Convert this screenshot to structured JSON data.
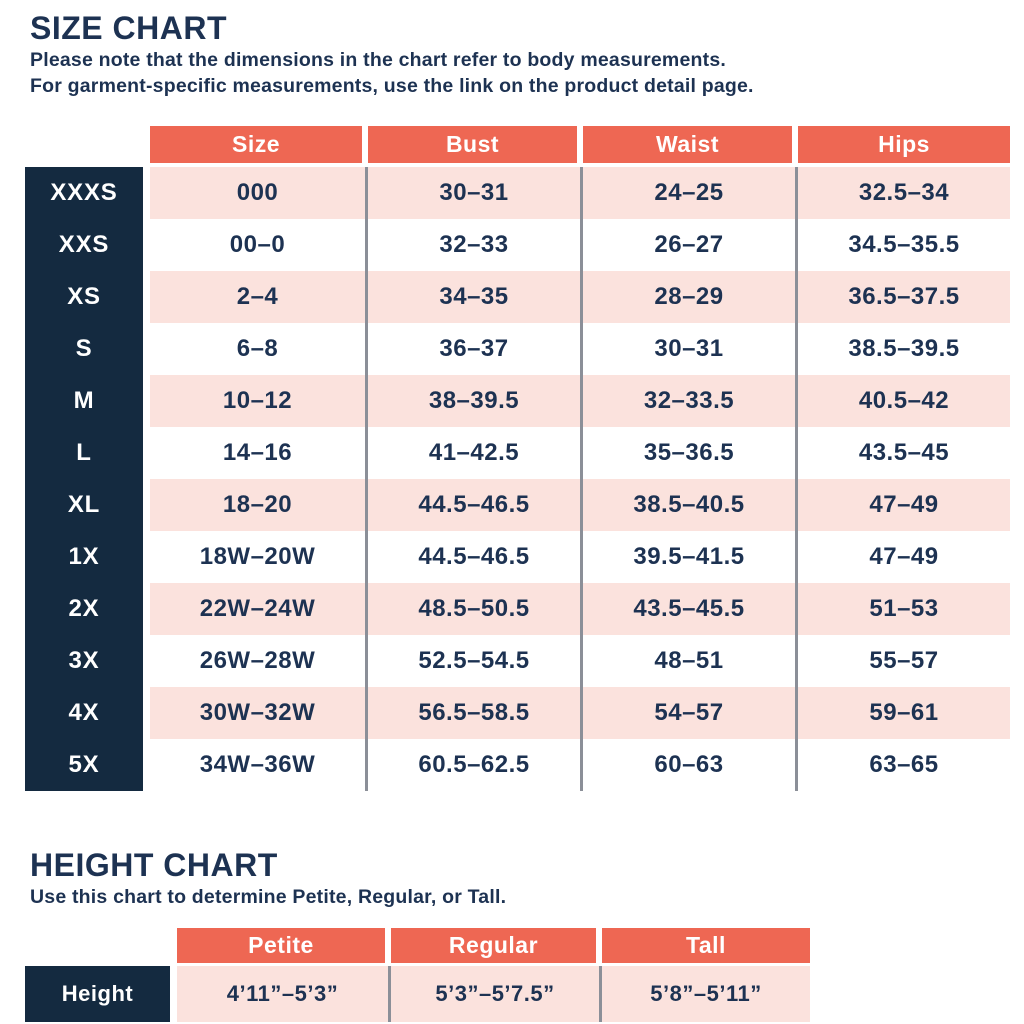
{
  "colors": {
    "accent_orange": "#EE6753",
    "row_pink": "#FBE2DD",
    "navy_block": "#142A40",
    "text_navy": "#1D3252",
    "divider_gray": "#8B8F98"
  },
  "size_chart": {
    "title": "SIZE CHART",
    "subtitle_line1": "Please note that the dimensions in the chart refer to body measurements.",
    "subtitle_line2": "For garment-specific measurements, use the link on the product detail page.",
    "columns": [
      "Size",
      "Bust",
      "Waist",
      "Hips"
    ],
    "rows": [
      {
        "label": "XXXS",
        "values": [
          "000",
          "30–31",
          "24–25",
          "32.5–34"
        ]
      },
      {
        "label": "XXS",
        "values": [
          "00–0",
          "32–33",
          "26–27",
          "34.5–35.5"
        ]
      },
      {
        "label": "XS",
        "values": [
          "2–4",
          "34–35",
          "28–29",
          "36.5–37.5"
        ]
      },
      {
        "label": "S",
        "values": [
          "6–8",
          "36–37",
          "30–31",
          "38.5–39.5"
        ]
      },
      {
        "label": "M",
        "values": [
          "10–12",
          "38–39.5",
          "32–33.5",
          "40.5–42"
        ]
      },
      {
        "label": "L",
        "values": [
          "14–16",
          "41–42.5",
          "35–36.5",
          "43.5–45"
        ]
      },
      {
        "label": "XL",
        "values": [
          "18–20",
          "44.5–46.5",
          "38.5–40.5",
          "47–49"
        ]
      },
      {
        "label": "1X",
        "values": [
          "18W–20W",
          "44.5–46.5",
          "39.5–41.5",
          "47–49"
        ]
      },
      {
        "label": "2X",
        "values": [
          "22W–24W",
          "48.5–50.5",
          "43.5–45.5",
          "51–53"
        ]
      },
      {
        "label": "3X",
        "values": [
          "26W–28W",
          "52.5–54.5",
          "48–51",
          "55–57"
        ]
      },
      {
        "label": "4X",
        "values": [
          "30W–32W",
          "56.5–58.5",
          "54–57",
          "59–61"
        ]
      },
      {
        "label": "5X",
        "values": [
          "34W–36W",
          "60.5–62.5",
          "60–63",
          "63–65"
        ]
      }
    ]
  },
  "height_chart": {
    "title": "HEIGHT CHART",
    "subtitle": "Use this chart to determine Petite, Regular, or Tall.",
    "columns": [
      "Petite",
      "Regular",
      "Tall"
    ],
    "rows": [
      {
        "label": "Height",
        "values": [
          "4’11”–5’3”",
          "5’3”–5’7.5”",
          "5’8”–5’11”"
        ]
      }
    ]
  }
}
